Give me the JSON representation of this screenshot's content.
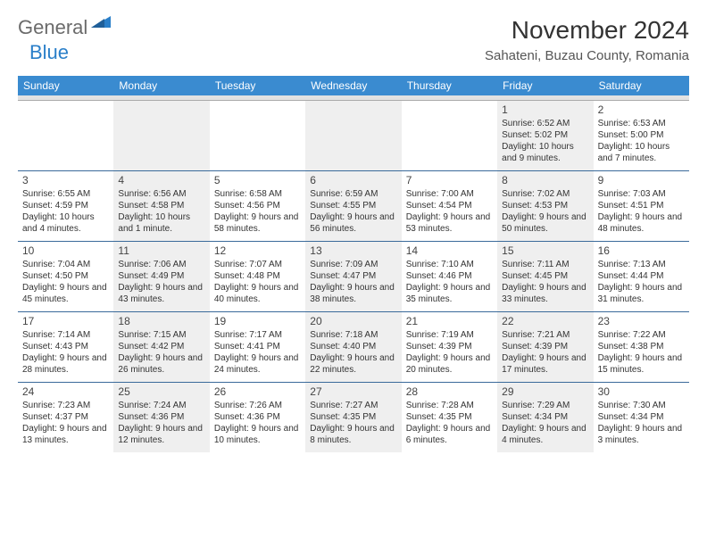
{
  "logo": {
    "text1": "General",
    "text2": "Blue"
  },
  "title": "November 2024",
  "location": "Sahateni, Buzau County, Romania",
  "daynames": [
    "Sunday",
    "Monday",
    "Tuesday",
    "Wednesday",
    "Thursday",
    "Friday",
    "Saturday"
  ],
  "colors": {
    "header_bg": "#3a8bd0",
    "divider": "#3a6a9a",
    "alt_bg": "#efefef",
    "filler_bg": "#e2e2e2",
    "logo_blue": "#2a7fc9",
    "logo_gray": "#6b6b6b"
  },
  "weeks": [
    [
      {
        "num": "",
        "lines": []
      },
      {
        "num": "",
        "lines": []
      },
      {
        "num": "",
        "lines": []
      },
      {
        "num": "",
        "lines": []
      },
      {
        "num": "",
        "lines": []
      },
      {
        "num": "1",
        "lines": [
          "Sunrise: 6:52 AM",
          "Sunset: 5:02 PM",
          "Daylight: 10 hours and 9 minutes."
        ]
      },
      {
        "num": "2",
        "lines": [
          "Sunrise: 6:53 AM",
          "Sunset: 5:00 PM",
          "Daylight: 10 hours and 7 minutes."
        ]
      }
    ],
    [
      {
        "num": "3",
        "lines": [
          "Sunrise: 6:55 AM",
          "Sunset: 4:59 PM",
          "Daylight: 10 hours and 4 minutes."
        ]
      },
      {
        "num": "4",
        "lines": [
          "Sunrise: 6:56 AM",
          "Sunset: 4:58 PM",
          "Daylight: 10 hours and 1 minute."
        ]
      },
      {
        "num": "5",
        "lines": [
          "Sunrise: 6:58 AM",
          "Sunset: 4:56 PM",
          "Daylight: 9 hours and 58 minutes."
        ]
      },
      {
        "num": "6",
        "lines": [
          "Sunrise: 6:59 AM",
          "Sunset: 4:55 PM",
          "Daylight: 9 hours and 56 minutes."
        ]
      },
      {
        "num": "7",
        "lines": [
          "Sunrise: 7:00 AM",
          "Sunset: 4:54 PM",
          "Daylight: 9 hours and 53 minutes."
        ]
      },
      {
        "num": "8",
        "lines": [
          "Sunrise: 7:02 AM",
          "Sunset: 4:53 PM",
          "Daylight: 9 hours and 50 minutes."
        ]
      },
      {
        "num": "9",
        "lines": [
          "Sunrise: 7:03 AM",
          "Sunset: 4:51 PM",
          "Daylight: 9 hours and 48 minutes."
        ]
      }
    ],
    [
      {
        "num": "10",
        "lines": [
          "Sunrise: 7:04 AM",
          "Sunset: 4:50 PM",
          "Daylight: 9 hours and 45 minutes."
        ]
      },
      {
        "num": "11",
        "lines": [
          "Sunrise: 7:06 AM",
          "Sunset: 4:49 PM",
          "Daylight: 9 hours and 43 minutes."
        ]
      },
      {
        "num": "12",
        "lines": [
          "Sunrise: 7:07 AM",
          "Sunset: 4:48 PM",
          "Daylight: 9 hours and 40 minutes."
        ]
      },
      {
        "num": "13",
        "lines": [
          "Sunrise: 7:09 AM",
          "Sunset: 4:47 PM",
          "Daylight: 9 hours and 38 minutes."
        ]
      },
      {
        "num": "14",
        "lines": [
          "Sunrise: 7:10 AM",
          "Sunset: 4:46 PM",
          "Daylight: 9 hours and 35 minutes."
        ]
      },
      {
        "num": "15",
        "lines": [
          "Sunrise: 7:11 AM",
          "Sunset: 4:45 PM",
          "Daylight: 9 hours and 33 minutes."
        ]
      },
      {
        "num": "16",
        "lines": [
          "Sunrise: 7:13 AM",
          "Sunset: 4:44 PM",
          "Daylight: 9 hours and 31 minutes."
        ]
      }
    ],
    [
      {
        "num": "17",
        "lines": [
          "Sunrise: 7:14 AM",
          "Sunset: 4:43 PM",
          "Daylight: 9 hours and 28 minutes."
        ]
      },
      {
        "num": "18",
        "lines": [
          "Sunrise: 7:15 AM",
          "Sunset: 4:42 PM",
          "Daylight: 9 hours and 26 minutes."
        ]
      },
      {
        "num": "19",
        "lines": [
          "Sunrise: 7:17 AM",
          "Sunset: 4:41 PM",
          "Daylight: 9 hours and 24 minutes."
        ]
      },
      {
        "num": "20",
        "lines": [
          "Sunrise: 7:18 AM",
          "Sunset: 4:40 PM",
          "Daylight: 9 hours and 22 minutes."
        ]
      },
      {
        "num": "21",
        "lines": [
          "Sunrise: 7:19 AM",
          "Sunset: 4:39 PM",
          "Daylight: 9 hours and 20 minutes."
        ]
      },
      {
        "num": "22",
        "lines": [
          "Sunrise: 7:21 AM",
          "Sunset: 4:39 PM",
          "Daylight: 9 hours and 17 minutes."
        ]
      },
      {
        "num": "23",
        "lines": [
          "Sunrise: 7:22 AM",
          "Sunset: 4:38 PM",
          "Daylight: 9 hours and 15 minutes."
        ]
      }
    ],
    [
      {
        "num": "24",
        "lines": [
          "Sunrise: 7:23 AM",
          "Sunset: 4:37 PM",
          "Daylight: 9 hours and 13 minutes."
        ]
      },
      {
        "num": "25",
        "lines": [
          "Sunrise: 7:24 AM",
          "Sunset: 4:36 PM",
          "Daylight: 9 hours and 12 minutes."
        ]
      },
      {
        "num": "26",
        "lines": [
          "Sunrise: 7:26 AM",
          "Sunset: 4:36 PM",
          "Daylight: 9 hours and 10 minutes."
        ]
      },
      {
        "num": "27",
        "lines": [
          "Sunrise: 7:27 AM",
          "Sunset: 4:35 PM",
          "Daylight: 9 hours and 8 minutes."
        ]
      },
      {
        "num": "28",
        "lines": [
          "Sunrise: 7:28 AM",
          "Sunset: 4:35 PM",
          "Daylight: 9 hours and 6 minutes."
        ]
      },
      {
        "num": "29",
        "lines": [
          "Sunrise: 7:29 AM",
          "Sunset: 4:34 PM",
          "Daylight: 9 hours and 4 minutes."
        ]
      },
      {
        "num": "30",
        "lines": [
          "Sunrise: 7:30 AM",
          "Sunset: 4:34 PM",
          "Daylight: 9 hours and 3 minutes."
        ]
      }
    ]
  ]
}
